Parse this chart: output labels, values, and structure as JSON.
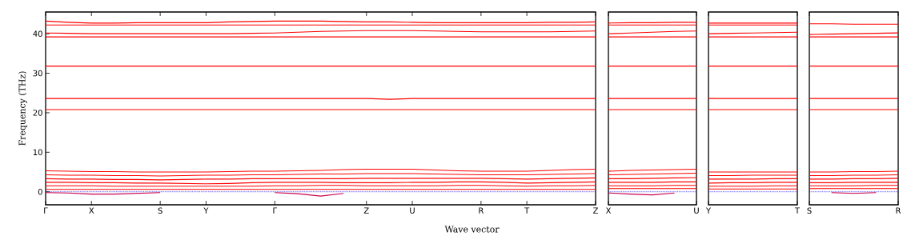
{
  "chart_data": [
    {
      "type": "line",
      "ylabel": "Frequency (THz)",
      "xlabel": "Wave vector",
      "ylim": [
        -3.3,
        45.5
      ],
      "yticks": [
        0,
        10,
        20,
        30,
        40
      ],
      "categories": [
        "Γ",
        null,
        "X",
        null,
        null,
        "S",
        null,
        "Y",
        null,
        null,
        "Γ",
        null,
        null,
        null,
        "Z",
        null,
        "U",
        null,
        null,
        "R",
        null,
        "T",
        null,
        null,
        "Z"
      ],
      "ref_lines": [
        {
          "axis": "y",
          "value": 0,
          "color": "#0000ff",
          "line_style": "dotted"
        }
      ],
      "series": [
        {
          "color": "#ff0000",
          "values": [
            43.2,
            42.9,
            42.7,
            42.7,
            42.8,
            42.8,
            42.8,
            42.8,
            43.0,
            43.1,
            43.2,
            43.2,
            43.2,
            43.1,
            43.0,
            43.0,
            42.9,
            42.8,
            42.8,
            42.8,
            42.8,
            42.8,
            42.9,
            42.9,
            43.0
          ]
        },
        {
          "color": "#ff0000",
          "values": [
            42.2,
            42.2,
            42.2,
            42.2,
            42.2,
            42.2,
            42.2,
            42.2,
            42.2,
            42.2,
            42.2,
            42.2,
            42.2,
            42.2,
            42.2,
            42.2,
            42.2,
            42.2,
            42.2,
            42.2,
            42.2,
            42.2,
            42.2,
            42.2,
            42.2
          ]
        },
        {
          "color": "#ff0000",
          "values": [
            40.2,
            40.1,
            40.0,
            40.0,
            40.0,
            40.0,
            40.0,
            40.0,
            40.0,
            40.1,
            40.2,
            40.4,
            40.6,
            40.7,
            40.8,
            40.8,
            40.8,
            40.7,
            40.6,
            40.5,
            40.5,
            40.5,
            40.5,
            40.6,
            40.7
          ]
        },
        {
          "color": "#ff0000",
          "values": [
            39.2,
            39.2,
            39.2,
            39.2,
            39.2,
            39.2,
            39.2,
            39.2,
            39.2,
            39.2,
            39.2,
            39.2,
            39.2,
            39.2,
            39.2,
            39.2,
            39.2,
            39.2,
            39.2,
            39.2,
            39.2,
            39.2,
            39.2,
            39.2,
            39.2
          ]
        },
        {
          "color": "#ff0000",
          "values": [
            31.8,
            31.8,
            31.8,
            31.8,
            31.8,
            31.8,
            31.8,
            31.8,
            31.8,
            31.8,
            31.8,
            31.8,
            31.8,
            31.8,
            31.8,
            31.8,
            31.8,
            31.8,
            31.8,
            31.8,
            31.8,
            31.8,
            31.8,
            31.8,
            31.8
          ]
        },
        {
          "color": "#ff0000",
          "values": [
            23.6,
            23.6,
            23.6,
            23.6,
            23.6,
            23.6,
            23.6,
            23.6,
            23.6,
            23.6,
            23.6,
            23.6,
            23.6,
            23.6,
            23.6,
            23.4,
            23.6,
            23.6,
            23.6,
            23.6,
            23.6,
            23.6,
            23.6,
            23.6,
            23.6
          ]
        },
        {
          "color": "#ff0000",
          "values": [
            20.8,
            20.8,
            20.8,
            20.8,
            20.8,
            20.8,
            20.8,
            20.8,
            20.8,
            20.8,
            20.8,
            20.8,
            20.8,
            20.8,
            20.8,
            20.8,
            20.8,
            20.8,
            20.8,
            20.8,
            20.8,
            20.8,
            20.8,
            20.8,
            20.8
          ]
        },
        {
          "color": "#ff0000",
          "values": [
            5.3,
            5.2,
            5.1,
            5.1,
            5.0,
            5.0,
            5.0,
            5.0,
            5.1,
            5.2,
            5.2,
            5.3,
            5.4,
            5.6,
            5.7,
            5.7,
            5.7,
            5.5,
            5.3,
            5.2,
            5.2,
            5.2,
            5.4,
            5.6,
            5.7
          ]
        },
        {
          "color": "#ff0000",
          "values": [
            4.3,
            4.2,
            4.2,
            4.1,
            4.1,
            4.0,
            4.1,
            4.2,
            4.2,
            4.3,
            4.3,
            4.4,
            4.5,
            4.5,
            4.6,
            4.6,
            4.6,
            4.5,
            4.4,
            4.3,
            4.3,
            4.3,
            4.4,
            4.5,
            4.6
          ]
        },
        {
          "color": "#ff0000",
          "values": [
            3.3,
            3.2,
            3.2,
            3.1,
            3.1,
            3.0,
            3.1,
            3.2,
            3.2,
            3.3,
            3.3,
            3.3,
            3.3,
            3.3,
            3.4,
            3.4,
            3.4,
            3.4,
            3.4,
            3.4,
            3.3,
            3.2,
            3.3,
            3.4,
            3.5
          ]
        },
        {
          "color": "#ff0000",
          "values": [
            2.4,
            2.4,
            2.3,
            2.3,
            2.2,
            2.2,
            2.1,
            2.0,
            2.1,
            2.3,
            2.4,
            2.4,
            2.4,
            2.3,
            2.3,
            2.3,
            2.4,
            2.4,
            2.5,
            2.5,
            2.4,
            2.2,
            2.3,
            2.4,
            2.5
          ]
        },
        {
          "color": "#ff0000",
          "values": [
            1.5,
            1.5,
            1.5,
            1.4,
            1.4,
            1.4,
            1.4,
            1.4,
            1.4,
            1.4,
            1.5,
            1.5,
            1.6,
            1.6,
            1.5,
            1.5,
            1.5,
            1.5,
            1.6,
            1.6,
            1.5,
            1.4,
            1.5,
            1.5,
            1.6
          ]
        },
        {
          "color": "#ff0000",
          "values": [
            0.6,
            0.6,
            0.6,
            0.6,
            0.6,
            0.6,
            0.6,
            0.6,
            0.6,
            0.6,
            0.6,
            0.6,
            0.6,
            0.6,
            0.6,
            0.6,
            0.6,
            0.6,
            0.6,
            0.6,
            0.6,
            0.6,
            0.6,
            0.6,
            0.6
          ]
        },
        {
          "color": "#c8004c",
          "values": [
            -0.2,
            -0.3,
            -0.6,
            -0.6,
            -0.4,
            -0.2,
            null,
            null,
            null,
            null,
            -0.2,
            -0.5,
            -1.1,
            -0.4,
            null,
            null,
            null,
            null,
            null,
            null,
            null,
            null,
            null,
            null,
            null
          ]
        }
      ]
    },
    {
      "type": "line",
      "ylim": [
        -3.3,
        45.5
      ],
      "tick_labels": "x",
      "categories": [
        "X",
        null,
        null,
        null,
        "U"
      ],
      "ref_lines": [
        {
          "axis": "y",
          "value": 0,
          "color": "#0000ff",
          "line_style": "dotted"
        }
      ],
      "series": [
        {
          "color": "#ff0000",
          "values": [
            42.7,
            42.8,
            42.8,
            42.9,
            42.9
          ]
        },
        {
          "color": "#ff0000",
          "values": [
            42.2,
            42.2,
            42.2,
            42.2,
            42.2
          ]
        },
        {
          "color": "#ff0000",
          "values": [
            40.0,
            40.2,
            40.4,
            40.6,
            40.7
          ]
        },
        {
          "color": "#ff0000",
          "values": [
            39.2,
            39.2,
            39.2,
            39.2,
            39.2
          ]
        },
        {
          "color": "#ff0000",
          "values": [
            31.8,
            31.8,
            31.8,
            31.8,
            31.8
          ]
        },
        {
          "color": "#ff0000",
          "values": [
            23.6,
            23.6,
            23.6,
            23.6,
            23.6
          ]
        },
        {
          "color": "#ff0000",
          "values": [
            20.8,
            20.8,
            20.8,
            20.8,
            20.8
          ]
        },
        {
          "color": "#ff0000",
          "values": [
            5.2,
            5.4,
            5.5,
            5.6,
            5.7
          ]
        },
        {
          "color": "#ff0000",
          "values": [
            4.3,
            4.4,
            4.5,
            4.6,
            4.7
          ]
        },
        {
          "color": "#ff0000",
          "values": [
            3.3,
            3.3,
            3.4,
            3.5,
            3.6
          ]
        },
        {
          "color": "#ff0000",
          "values": [
            2.4,
            2.4,
            2.4,
            2.5,
            2.5
          ]
        },
        {
          "color": "#ff0000",
          "values": [
            1.5,
            1.5,
            1.5,
            1.6,
            1.6
          ]
        },
        {
          "color": "#ff0000",
          "values": [
            0.8,
            0.8,
            0.8,
            0.8,
            0.8
          ]
        },
        {
          "color": "#c8004c",
          "values": [
            -0.3,
            -0.6,
            -0.8,
            -0.3,
            null
          ]
        }
      ]
    },
    {
      "type": "line",
      "ylim": [
        -3.3,
        45.5
      ],
      "tick_labels": "x",
      "categories": [
        "Y",
        null,
        null,
        null,
        "T"
      ],
      "ref_lines": [
        {
          "axis": "y",
          "value": 0,
          "color": "#0000ff",
          "line_style": "dotted"
        }
      ],
      "series": [
        {
          "color": "#ff0000",
          "values": [
            42.7,
            42.7,
            42.7,
            42.7,
            42.7
          ]
        },
        {
          "color": "#ff0000",
          "values": [
            42.2,
            42.2,
            42.2,
            42.2,
            42.2
          ]
        },
        {
          "color": "#ff0000",
          "values": [
            40.0,
            40.1,
            40.2,
            40.3,
            40.4
          ]
        },
        {
          "color": "#ff0000",
          "values": [
            39.2,
            39.2,
            39.2,
            39.2,
            39.2
          ]
        },
        {
          "color": "#ff0000",
          "values": [
            31.8,
            31.8,
            31.8,
            31.8,
            31.8
          ]
        },
        {
          "color": "#ff0000",
          "values": [
            23.6,
            23.6,
            23.6,
            23.6,
            23.6
          ]
        },
        {
          "color": "#ff0000",
          "values": [
            20.8,
            20.8,
            20.8,
            20.8,
            20.8
          ]
        },
        {
          "color": "#ff0000",
          "values": [
            5.0,
            5.0,
            5.0,
            5.0,
            5.0
          ]
        },
        {
          "color": "#ff0000",
          "values": [
            4.1,
            4.1,
            4.2,
            4.2,
            4.2
          ]
        },
        {
          "color": "#ff0000",
          "values": [
            3.2,
            3.2,
            3.2,
            3.3,
            3.3
          ]
        },
        {
          "color": "#ff0000",
          "values": [
            2.2,
            2.3,
            2.3,
            2.4,
            2.4
          ]
        },
        {
          "color": "#ff0000",
          "values": [
            1.4,
            1.4,
            1.4,
            1.5,
            1.5
          ]
        },
        {
          "color": "#ff0000",
          "values": [
            0.7,
            0.7,
            0.7,
            0.7,
            0.7
          ]
        }
      ]
    },
    {
      "type": "line",
      "ylim": [
        -3.3,
        45.5
      ],
      "tick_labels": "x",
      "categories": [
        "S",
        null,
        null,
        null,
        "R"
      ],
      "ref_lines": [
        {
          "axis": "y",
          "value": 0,
          "color": "#0000ff",
          "line_style": "dotted"
        }
      ],
      "series": [
        {
          "color": "#ff0000",
          "values": [
            42.5,
            42.5,
            42.4,
            42.4,
            42.4
          ]
        },
        {
          "color": "#ff0000",
          "values": [
            39.8,
            39.9,
            40.0,
            40.1,
            40.2
          ]
        },
        {
          "color": "#ff0000",
          "values": [
            39.2,
            39.2,
            39.2,
            39.2,
            39.2
          ]
        },
        {
          "color": "#ff0000",
          "values": [
            31.8,
            31.8,
            31.8,
            31.8,
            31.8
          ]
        },
        {
          "color": "#ff0000",
          "values": [
            23.6,
            23.6,
            23.6,
            23.6,
            23.6
          ]
        },
        {
          "color": "#ff0000",
          "values": [
            20.8,
            20.8,
            20.8,
            20.8,
            20.8
          ]
        },
        {
          "color": "#ff0000",
          "values": [
            5.0,
            5.0,
            5.1,
            5.1,
            5.2
          ]
        },
        {
          "color": "#ff0000",
          "values": [
            4.1,
            4.1,
            4.2,
            4.2,
            4.3
          ]
        },
        {
          "color": "#ff0000",
          "values": [
            3.2,
            3.2,
            3.3,
            3.3,
            3.4
          ]
        },
        {
          "color": "#ff0000",
          "values": [
            2.3,
            2.3,
            2.4,
            2.4,
            2.4
          ]
        },
        {
          "color": "#ff0000",
          "values": [
            1.5,
            1.5,
            1.5,
            1.6,
            1.6
          ]
        },
        {
          "color": "#ff0000",
          "values": [
            0.8,
            0.8,
            0.8,
            0.8,
            0.8
          ]
        },
        {
          "color": "#c8004c",
          "values": [
            null,
            -0.2,
            -0.4,
            -0.2,
            null
          ]
        }
      ]
    }
  ]
}
